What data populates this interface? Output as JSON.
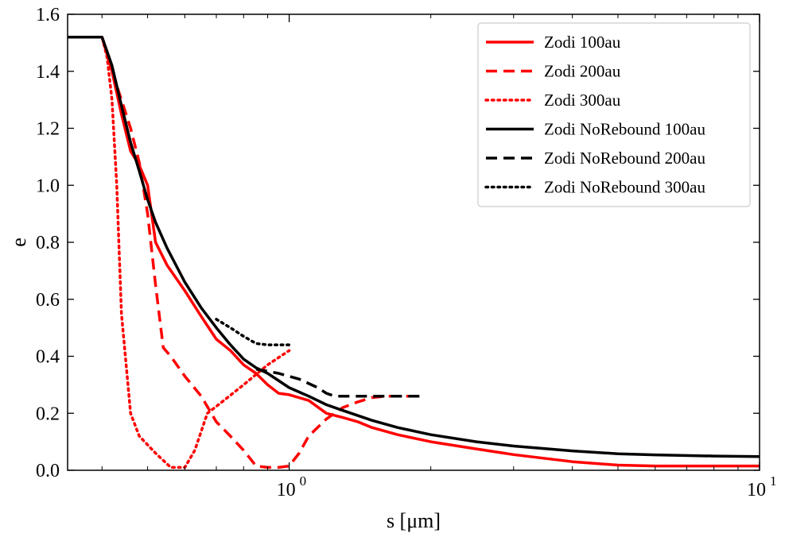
{
  "chart_data": {
    "type": "line",
    "title": "",
    "xlabel": "s [μm]",
    "ylabel": "e",
    "xscale": "log",
    "xlim": [
      0.338,
      10
    ],
    "ylim": [
      0,
      1.6
    ],
    "grid": false,
    "legend_position": "top-right",
    "xticks": [
      {
        "value": 1,
        "base": "10",
        "exp": "0"
      },
      {
        "value": 10,
        "base": "10",
        "exp": "1"
      }
    ],
    "yticks": [
      {
        "value": 0.0,
        "label": "0.0"
      },
      {
        "value": 0.2,
        "label": "0.2"
      },
      {
        "value": 0.4,
        "label": "0.4"
      },
      {
        "value": 0.6,
        "label": "0.6"
      },
      {
        "value": 0.8,
        "label": "0.8"
      },
      {
        "value": 1.0,
        "label": "1.0"
      },
      {
        "value": 1.2,
        "label": "1.2"
      },
      {
        "value": 1.4,
        "label": "1.4"
      },
      {
        "value": 1.6,
        "label": "1.6"
      }
    ],
    "series": [
      {
        "name": "Zodi 100au",
        "color": "#ff0000",
        "style": "solid",
        "x": [
          0.338,
          0.4,
          0.42,
          0.44,
          0.46,
          0.48,
          0.5,
          0.52,
          0.55,
          0.6,
          0.65,
          0.7,
          0.75,
          0.8,
          0.85,
          0.9,
          0.95,
          1.0,
          1.1,
          1.2,
          1.3,
          1.4,
          1.5,
          1.7,
          2.0,
          2.5,
          3.0,
          4.0,
          5.0,
          6.0,
          8.0,
          10.0
        ],
        "y": [
          1.52,
          1.52,
          1.4,
          1.25,
          1.12,
          1.07,
          1.0,
          0.8,
          0.72,
          0.63,
          0.54,
          0.46,
          0.42,
          0.37,
          0.34,
          0.3,
          0.27,
          0.265,
          0.245,
          0.2,
          0.185,
          0.17,
          0.15,
          0.125,
          0.1,
          0.075,
          0.055,
          0.03,
          0.018,
          0.015,
          0.015,
          0.015
        ]
      },
      {
        "name": "Zodi 200au",
        "color": "#ff0000",
        "style": "dashed",
        "x": [
          0.338,
          0.4,
          0.42,
          0.44,
          0.46,
          0.48,
          0.5,
          0.52,
          0.54,
          0.56,
          0.6,
          0.65,
          0.7,
          0.75,
          0.8,
          0.85,
          0.9,
          0.95,
          1.0,
          1.05,
          1.1,
          1.2,
          1.3,
          1.4,
          1.5,
          1.6,
          1.9
        ],
        "y": [
          1.52,
          1.52,
          1.4,
          1.3,
          1.2,
          1.08,
          0.9,
          0.65,
          0.43,
          0.4,
          0.33,
          0.26,
          0.17,
          0.12,
          0.07,
          0.015,
          0.01,
          0.01,
          0.015,
          0.06,
          0.12,
          0.18,
          0.22,
          0.24,
          0.255,
          0.26,
          0.26
        ]
      },
      {
        "name": "Zodi 300au",
        "color": "#ff0000",
        "style": "dotted",
        "x": [
          0.338,
          0.4,
          0.41,
          0.42,
          0.43,
          0.44,
          0.46,
          0.48,
          0.52,
          0.56,
          0.6,
          0.63,
          0.67,
          0.72,
          0.8,
          0.9,
          1.0
        ],
        "y": [
          1.52,
          1.52,
          1.45,
          1.3,
          1.0,
          0.55,
          0.2,
          0.12,
          0.06,
          0.01,
          0.01,
          0.07,
          0.2,
          0.24,
          0.3,
          0.37,
          0.42
        ]
      },
      {
        "name": "Zodi NoRebound 100au",
        "color": "#000000",
        "style": "solid",
        "x": [
          0.338,
          0.4,
          0.42,
          0.44,
          0.46,
          0.48,
          0.5,
          0.52,
          0.55,
          0.6,
          0.65,
          0.7,
          0.75,
          0.8,
          0.85,
          0.9,
          1.0,
          1.1,
          1.2,
          1.3,
          1.5,
          1.7,
          2.0,
          2.5,
          3.0,
          4.0,
          5.0,
          6.0,
          8.0,
          10.0
        ],
        "y": [
          1.52,
          1.52,
          1.42,
          1.28,
          1.15,
          1.05,
          0.95,
          0.87,
          0.78,
          0.66,
          0.57,
          0.5,
          0.44,
          0.39,
          0.36,
          0.34,
          0.29,
          0.26,
          0.23,
          0.21,
          0.175,
          0.15,
          0.125,
          0.1,
          0.085,
          0.068,
          0.058,
          0.054,
          0.05,
          0.048
        ]
      },
      {
        "name": "Zodi NoRebound 200au",
        "color": "#000000",
        "style": "dashed",
        "x": [
          0.85,
          0.95,
          1.05,
          1.15,
          1.2,
          1.25,
          1.3,
          1.5,
          1.9
        ],
        "y": [
          0.355,
          0.34,
          0.32,
          0.29,
          0.27,
          0.26,
          0.26,
          0.26,
          0.26
        ]
      },
      {
        "name": "Zodi NoRebound 300au",
        "color": "#000000",
        "style": "dotted",
        "x": [
          0.7,
          0.75,
          0.8,
          0.85,
          0.9,
          0.95,
          1.0
        ],
        "y": [
          0.53,
          0.5,
          0.47,
          0.445,
          0.44,
          0.44,
          0.44
        ]
      }
    ]
  }
}
